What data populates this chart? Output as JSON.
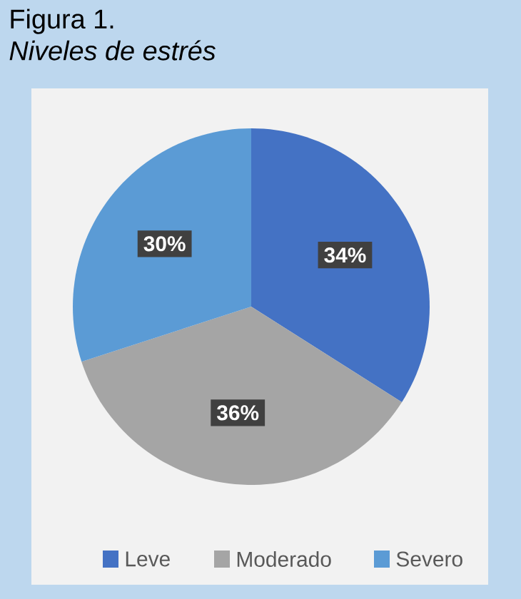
{
  "chart_data": {
    "type": "pie",
    "title": "Figura 1.",
    "subtitle": "Niveles de estrés",
    "categories": [
      "Leve",
      "Moderado",
      "Severo"
    ],
    "values": [
      34,
      36,
      30
    ],
    "colors": [
      "#4472c4",
      "#a5a5a5",
      "#5b9bd5"
    ],
    "value_labels": [
      "34%",
      "36%",
      "30%"
    ],
    "legend": "bottom"
  }
}
